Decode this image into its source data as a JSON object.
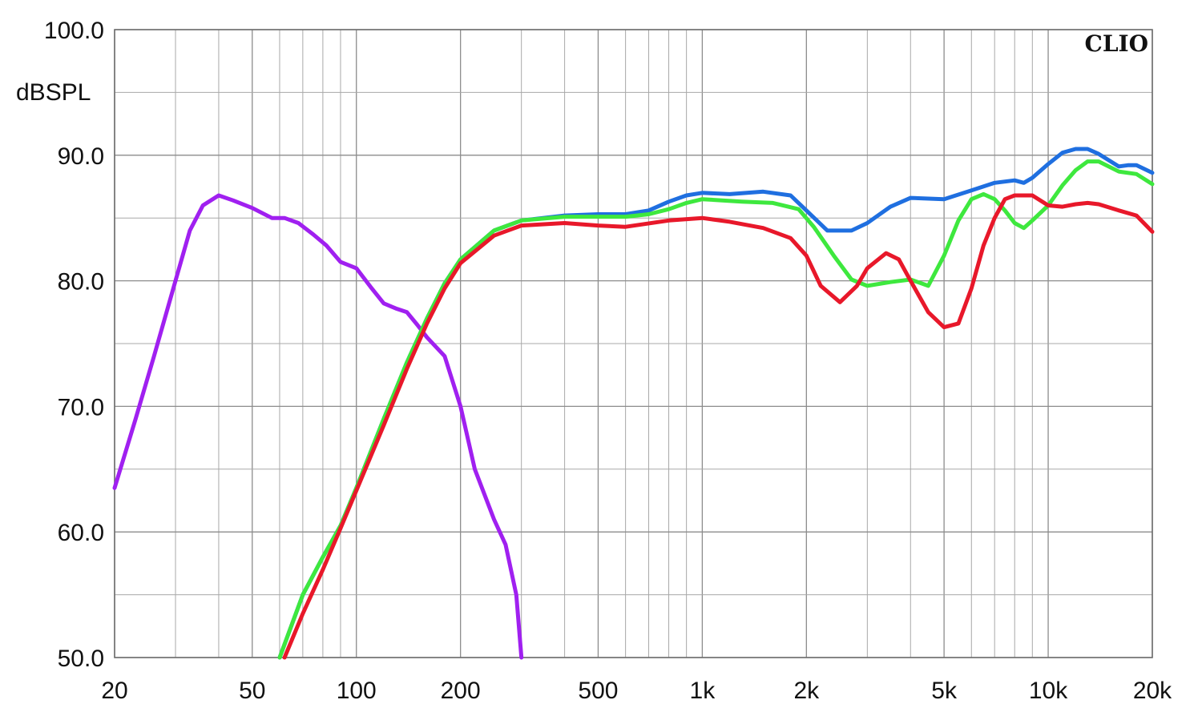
{
  "brand": "CLIO",
  "chart_data": {
    "type": "line",
    "title": "",
    "xlabel": "",
    "ylabel": "dBSPL",
    "xscale": "log",
    "xlim": [
      20,
      20000
    ],
    "ylim": [
      50,
      100
    ],
    "grid": true,
    "x_ticks": [
      {
        "value": 20,
        "label": "20"
      },
      {
        "value": 50,
        "label": "50"
      },
      {
        "value": 100,
        "label": "100"
      },
      {
        "value": 200,
        "label": "200"
      },
      {
        "value": 500,
        "label": "500"
      },
      {
        "value": 1000,
        "label": "1k"
      },
      {
        "value": 2000,
        "label": "2k"
      },
      {
        "value": 5000,
        "label": "5k"
      },
      {
        "value": 10000,
        "label": "10k"
      },
      {
        "value": 20000,
        "label": "20k"
      }
    ],
    "y_ticks": [
      {
        "value": 50,
        "label": "50.0"
      },
      {
        "value": 60,
        "label": "60.0"
      },
      {
        "value": 70,
        "label": "70.0"
      },
      {
        "value": 80,
        "label": "80.0"
      },
      {
        "value": 90,
        "label": "90.0"
      },
      {
        "value": 100,
        "label": "100.0"
      }
    ],
    "series": [
      {
        "color": "#a020f0",
        "points": [
          [
            20,
            63.5
          ],
          [
            23,
            69
          ],
          [
            26,
            74
          ],
          [
            30,
            80
          ],
          [
            33,
            84
          ],
          [
            36,
            86
          ],
          [
            40,
            86.8
          ],
          [
            44,
            86.4
          ],
          [
            50,
            85.8
          ],
          [
            57,
            85
          ],
          [
            62,
            85
          ],
          [
            68,
            84.6
          ],
          [
            75,
            83.7
          ],
          [
            82,
            82.8
          ],
          [
            90,
            81.5
          ],
          [
            100,
            81
          ],
          [
            110,
            79.5
          ],
          [
            120,
            78.2
          ],
          [
            130,
            77.8
          ],
          [
            140,
            77.5
          ],
          [
            150,
            76.5
          ],
          [
            160,
            75.5
          ],
          [
            180,
            74
          ],
          [
            200,
            70
          ],
          [
            220,
            65
          ],
          [
            250,
            61
          ],
          [
            270,
            59
          ],
          [
            290,
            55
          ],
          [
            300,
            50
          ]
        ]
      },
      {
        "color": "#1f6fe0",
        "points": [
          [
            60,
            50
          ],
          [
            70,
            55
          ],
          [
            80,
            58
          ],
          [
            90,
            60.5
          ],
          [
            100,
            63.5
          ],
          [
            120,
            69
          ],
          [
            140,
            73.5
          ],
          [
            160,
            77
          ],
          [
            180,
            79.8
          ],
          [
            200,
            81.7
          ],
          [
            250,
            84
          ],
          [
            300,
            84.8
          ],
          [
            400,
            85.2
          ],
          [
            500,
            85.3
          ],
          [
            600,
            85.3
          ],
          [
            700,
            85.6
          ],
          [
            800,
            86.3
          ],
          [
            900,
            86.8
          ],
          [
            1000,
            87
          ],
          [
            1200,
            86.9
          ],
          [
            1500,
            87.1
          ],
          [
            1800,
            86.8
          ],
          [
            2000,
            85.6
          ],
          [
            2300,
            84
          ],
          [
            2700,
            84
          ],
          [
            3000,
            84.6
          ],
          [
            3500,
            85.9
          ],
          [
            4000,
            86.6
          ],
          [
            5000,
            86.5
          ],
          [
            6000,
            87.2
          ],
          [
            7000,
            87.8
          ],
          [
            8000,
            88
          ],
          [
            8500,
            87.8
          ],
          [
            9000,
            88.2
          ],
          [
            10000,
            89.3
          ],
          [
            11000,
            90.2
          ],
          [
            12000,
            90.5
          ],
          [
            13000,
            90.5
          ],
          [
            14000,
            90.1
          ],
          [
            16000,
            89.1
          ],
          [
            17000,
            89.2
          ],
          [
            18000,
            89.2
          ],
          [
            20000,
            88.6
          ]
        ]
      },
      {
        "color": "#3ee83e",
        "points": [
          [
            60,
            50
          ],
          [
            70,
            55
          ],
          [
            80,
            58
          ],
          [
            90,
            60.5
          ],
          [
            100,
            63.5
          ],
          [
            120,
            69
          ],
          [
            140,
            73.5
          ],
          [
            160,
            77
          ],
          [
            180,
            79.8
          ],
          [
            200,
            81.7
          ],
          [
            250,
            84
          ],
          [
            300,
            84.8
          ],
          [
            400,
            85.1
          ],
          [
            500,
            85.1
          ],
          [
            600,
            85.1
          ],
          [
            700,
            85.3
          ],
          [
            800,
            85.7
          ],
          [
            900,
            86.2
          ],
          [
            1000,
            86.5
          ],
          [
            1300,
            86.3
          ],
          [
            1600,
            86.2
          ],
          [
            1900,
            85.7
          ],
          [
            2100,
            84.3
          ],
          [
            2400,
            82
          ],
          [
            2700,
            80.1
          ],
          [
            3000,
            79.6
          ],
          [
            3500,
            79.9
          ],
          [
            4000,
            80.1
          ],
          [
            4500,
            79.6
          ],
          [
            5000,
            82
          ],
          [
            5500,
            84.8
          ],
          [
            6000,
            86.5
          ],
          [
            6500,
            86.9
          ],
          [
            7000,
            86.5
          ],
          [
            7500,
            85.6
          ],
          [
            8000,
            84.6
          ],
          [
            8500,
            84.2
          ],
          [
            9000,
            84.8
          ],
          [
            10000,
            86
          ],
          [
            11000,
            87.6
          ],
          [
            12000,
            88.8
          ],
          [
            13000,
            89.5
          ],
          [
            14000,
            89.5
          ],
          [
            16000,
            88.7
          ],
          [
            18000,
            88.5
          ],
          [
            20000,
            87.7
          ]
        ]
      },
      {
        "color": "#e8182a",
        "points": [
          [
            62,
            50
          ],
          [
            70,
            53.5
          ],
          [
            80,
            57
          ],
          [
            90,
            60.3
          ],
          [
            100,
            63.3
          ],
          [
            120,
            68.5
          ],
          [
            140,
            73
          ],
          [
            160,
            76.6
          ],
          [
            180,
            79.4
          ],
          [
            200,
            81.4
          ],
          [
            250,
            83.6
          ],
          [
            300,
            84.4
          ],
          [
            400,
            84.6
          ],
          [
            500,
            84.4
          ],
          [
            600,
            84.3
          ],
          [
            800,
            84.8
          ],
          [
            1000,
            85
          ],
          [
            1200,
            84.7
          ],
          [
            1500,
            84.2
          ],
          [
            1800,
            83.4
          ],
          [
            2000,
            82
          ],
          [
            2200,
            79.6
          ],
          [
            2500,
            78.3
          ],
          [
            2800,
            79.6
          ],
          [
            3000,
            81
          ],
          [
            3400,
            82.2
          ],
          [
            3700,
            81.7
          ],
          [
            4000,
            80
          ],
          [
            4500,
            77.5
          ],
          [
            5000,
            76.3
          ],
          [
            5500,
            76.6
          ],
          [
            6000,
            79.4
          ],
          [
            6500,
            82.8
          ],
          [
            7000,
            85
          ],
          [
            7500,
            86.5
          ],
          [
            8000,
            86.8
          ],
          [
            9000,
            86.8
          ],
          [
            10000,
            86
          ],
          [
            11000,
            85.9
          ],
          [
            12000,
            86.1
          ],
          [
            13000,
            86.2
          ],
          [
            14000,
            86.1
          ],
          [
            16000,
            85.6
          ],
          [
            18000,
            85.2
          ],
          [
            20000,
            83.9
          ]
        ]
      }
    ]
  }
}
